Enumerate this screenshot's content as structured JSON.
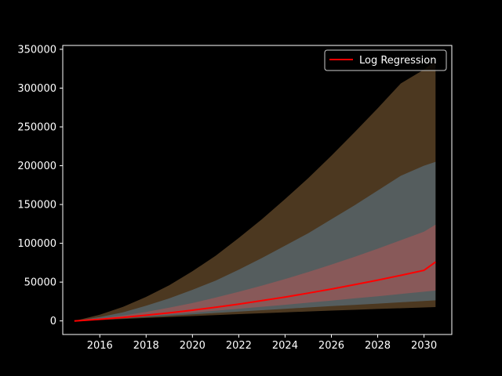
{
  "chart_data": {
    "type": "area",
    "title": "",
    "xlabel": "",
    "ylabel": "",
    "xlim": [
      2014.4,
      2031.2
    ],
    "ylim": [
      -17500,
      355000
    ],
    "x_ticks": [
      2016,
      2018,
      2020,
      2022,
      2024,
      2026,
      2028,
      2030
    ],
    "y_ticks": [
      0,
      50000,
      100000,
      150000,
      200000,
      250000,
      300000,
      350000
    ],
    "x": [
      2014.9,
      2016,
      2017,
      2018,
      2019,
      2020,
      2021,
      2022,
      2023,
      2024,
      2025,
      2026,
      2027,
      2028,
      2029,
      2030,
      2030.5
    ],
    "bands": [
      {
        "color": "#fcb96b",
        "opacity": 0.3,
        "lower": [
          0,
          1200,
          2400,
          3800,
          5000,
          6200,
          7500,
          8700,
          9900,
          11000,
          12200,
          13300,
          14300,
          15400,
          16300,
          17300,
          17800
        ],
        "upper": [
          0,
          8000,
          18000,
          31000,
          46000,
          64000,
          84000,
          107000,
          131000,
          157000,
          184000,
          213000,
          243000,
          274000,
          306000,
          324000,
          335000
        ]
      },
      {
        "color": "#6ab4f0",
        "opacity": 0.3,
        "lower": [
          0,
          1600,
          3200,
          5000,
          6700,
          8400,
          10300,
          12000,
          13800,
          15500,
          17300,
          19000,
          20700,
          22300,
          24000,
          25700,
          26500
        ],
        "upper": [
          0,
          5000,
          11000,
          19500,
          29000,
          40000,
          52000,
          66000,
          81000,
          97000,
          113000,
          131000,
          149000,
          168000,
          187000,
          200000,
          205000
        ]
      },
      {
        "color": "#ff5050",
        "opacity": 0.3,
        "lower": [
          0,
          2000,
          4000,
          6200,
          8500,
          10700,
          13200,
          15700,
          18200,
          20800,
          23500,
          26200,
          29000,
          31800,
          34700,
          37600,
          39100
        ],
        "upper": [
          0,
          3200,
          6800,
          11500,
          17000,
          23000,
          30000,
          37500,
          45500,
          54000,
          63000,
          72500,
          82500,
          93000,
          104000,
          115000,
          124000
        ]
      }
    ],
    "series": [
      {
        "name": "Log Regression",
        "color": "#ff0000",
        "values": [
          0,
          2100,
          4500,
          7300,
          10400,
          13800,
          17600,
          21700,
          26100,
          30800,
          35800,
          41100,
          46700,
          52600,
          58700,
          65200,
          76000
        ]
      }
    ],
    "grid": false,
    "legend": "top-right"
  }
}
